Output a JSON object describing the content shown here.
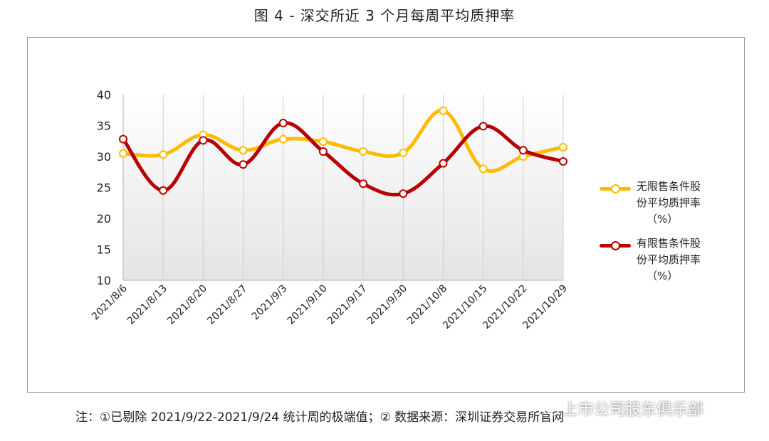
{
  "figure_title": "图 4 -  深交所近 3 个月每周平均质押率",
  "footnote": "注：①已剔除 2021/9/22-2021/9/24 统计周的极端值；②  数据来源：深圳证券交易所官网",
  "watermark": "上市公司股东俱乐部",
  "colors": {
    "unrestricted": "#FFBB00",
    "restricted": "#B80000"
  },
  "chart_data": {
    "type": "line",
    "categories": [
      "2021/8/6",
      "2021/8/13",
      "2021/8/20",
      "2021/8/27",
      "2021/9/3",
      "2021/9/10",
      "2021/9/17",
      "2021/9/30",
      "2021/10/8",
      "2021/10/15",
      "2021/10/22",
      "2021/10/29"
    ],
    "series": [
      {
        "name": "无限售条件股份平均质押率（%）",
        "values": [
          30.5,
          30.3,
          33.5,
          31.0,
          32.8,
          32.4,
          30.8,
          30.6,
          37.4,
          28.0,
          30.0,
          31.5
        ]
      },
      {
        "name": "有限售条件股份平均质押率（%）",
        "values": [
          32.8,
          24.5,
          32.6,
          28.7,
          35.4,
          30.8,
          25.6,
          24.0,
          28.9,
          34.9,
          31.0,
          29.2
        ]
      }
    ],
    "yticks": [
      10,
      15,
      20,
      25,
      30,
      35,
      40
    ],
    "ylim": [
      10,
      40
    ],
    "legend_position": "right",
    "grid": "vertical"
  },
  "legend": [
    {
      "lines": [
        "无限售条件股",
        "份平均质押率",
        "（%）"
      ]
    },
    {
      "lines": [
        "有限售条件股",
        "份平均质押率",
        "（%）"
      ]
    }
  ]
}
